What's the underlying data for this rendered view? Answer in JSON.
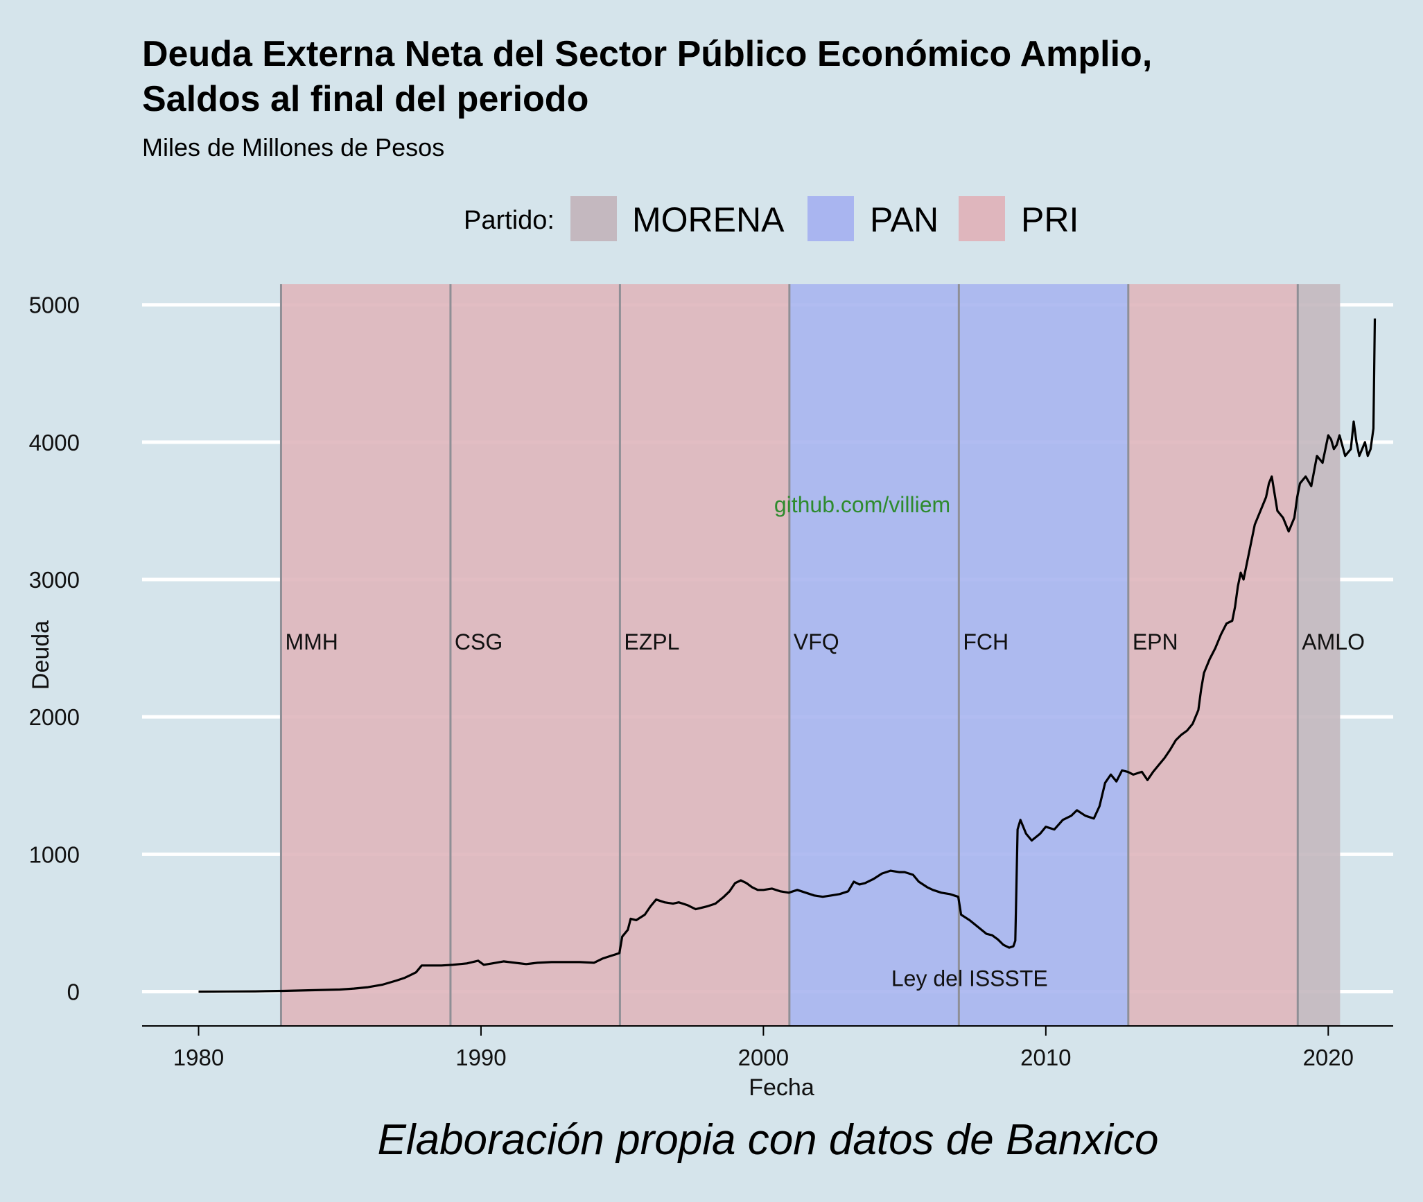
{
  "chart_data": {
    "type": "line",
    "title_lines": [
      "Deuda Externa Neta del Sector Público Económico Amplio,",
      "Saldos al final del periodo"
    ],
    "subtitle": "Miles de Millones de Pesos",
    "xlabel": "Fecha",
    "ylabel": "Deuda",
    "caption": "Elaboración propia con datos de Banxico",
    "watermark": "github.com/villiem",
    "xlim": [
      1978,
      2022.3
    ],
    "ylim": [
      -250,
      5150
    ],
    "x_ticks": [
      1980,
      1990,
      2000,
      2010,
      2020
    ],
    "y_ticks": [
      0,
      1000,
      2000,
      3000,
      4000,
      5000
    ],
    "grid": "horizontal",
    "background_color": "#d5e4eb",
    "line_color": "#000000",
    "legend": {
      "title": "Partido:",
      "position": "top",
      "items": [
        {
          "label": "MORENA",
          "color": "#c4b8bf"
        },
        {
          "label": "PAN",
          "color": "#a9b5f0"
        },
        {
          "label": "PRI",
          "color": "#dfb6bd"
        }
      ]
    },
    "periods": [
      {
        "label": "MMH",
        "party": "PRI",
        "start": 1982.92,
        "end": 1988.92
      },
      {
        "label": "CSG",
        "party": "PRI",
        "start": 1988.92,
        "end": 1994.92
      },
      {
        "label": "EZPL",
        "party": "PRI",
        "start": 1994.92,
        "end": 2000.92
      },
      {
        "label": "VFQ",
        "party": "PAN",
        "start": 2000.92,
        "end": 2006.92
      },
      {
        "label": "FCH",
        "party": "PAN",
        "start": 2006.92,
        "end": 2012.92
      },
      {
        "label": "EPN",
        "party": "PRI",
        "start": 2012.92,
        "end": 2018.92
      },
      {
        "label": "AMLO",
        "party": "MORENA",
        "start": 2018.92,
        "end": 2020.42
      }
    ],
    "period_label_y": 2550,
    "annotations": [
      {
        "text": "Ley del ISSSTE",
        "x": 2007.3,
        "y": 100
      }
    ],
    "series": [
      {
        "points": [
          [
            1980.0,
            0
          ],
          [
            1981.0,
            1
          ],
          [
            1982.0,
            2
          ],
          [
            1983.0,
            5
          ],
          [
            1984.0,
            10
          ],
          [
            1985.0,
            15
          ],
          [
            1985.5,
            22
          ],
          [
            1986.0,
            32
          ],
          [
            1986.5,
            50
          ],
          [
            1987.0,
            80
          ],
          [
            1987.3,
            100
          ],
          [
            1987.5,
            120
          ],
          [
            1987.7,
            140
          ],
          [
            1987.9,
            190
          ],
          [
            1988.2,
            190
          ],
          [
            1988.6,
            190
          ],
          [
            1989.0,
            195
          ],
          [
            1989.5,
            205
          ],
          [
            1989.9,
            225
          ],
          [
            1990.1,
            195
          ],
          [
            1990.4,
            205
          ],
          [
            1990.8,
            220
          ],
          [
            1991.2,
            210
          ],
          [
            1991.6,
            200
          ],
          [
            1992.0,
            210
          ],
          [
            1992.5,
            215
          ],
          [
            1993.0,
            215
          ],
          [
            1993.5,
            215
          ],
          [
            1994.0,
            210
          ],
          [
            1994.3,
            240
          ],
          [
            1994.6,
            260
          ],
          [
            1994.9,
            280
          ],
          [
            1995.0,
            400
          ],
          [
            1995.2,
            450
          ],
          [
            1995.3,
            530
          ],
          [
            1995.5,
            520
          ],
          [
            1995.8,
            560
          ],
          [
            1996.0,
            620
          ],
          [
            1996.2,
            670
          ],
          [
            1996.5,
            650
          ],
          [
            1996.8,
            640
          ],
          [
            1997.0,
            650
          ],
          [
            1997.3,
            630
          ],
          [
            1997.6,
            600
          ],
          [
            1998.0,
            620
          ],
          [
            1998.3,
            640
          ],
          [
            1998.6,
            690
          ],
          [
            1998.8,
            730
          ],
          [
            1999.0,
            790
          ],
          [
            1999.2,
            810
          ],
          [
            1999.4,
            790
          ],
          [
            1999.6,
            760
          ],
          [
            1999.8,
            740
          ],
          [
            2000.0,
            740
          ],
          [
            2000.3,
            750
          ],
          [
            2000.6,
            730
          ],
          [
            2000.9,
            720
          ],
          [
            2001.2,
            740
          ],
          [
            2001.5,
            720
          ],
          [
            2001.8,
            700
          ],
          [
            2002.1,
            690
          ],
          [
            2002.4,
            700
          ],
          [
            2002.7,
            710
          ],
          [
            2003.0,
            730
          ],
          [
            2003.2,
            800
          ],
          [
            2003.4,
            780
          ],
          [
            2003.6,
            790
          ],
          [
            2003.9,
            820
          ],
          [
            2004.2,
            860
          ],
          [
            2004.5,
            880
          ],
          [
            2004.8,
            870
          ],
          [
            2005.0,
            870
          ],
          [
            2005.3,
            850
          ],
          [
            2005.5,
            800
          ],
          [
            2005.8,
            760
          ],
          [
            2006.0,
            740
          ],
          [
            2006.3,
            720
          ],
          [
            2006.6,
            710
          ],
          [
            2006.9,
            690
          ],
          [
            2007.0,
            560
          ],
          [
            2007.3,
            520
          ],
          [
            2007.6,
            470
          ],
          [
            2007.9,
            420
          ],
          [
            2008.1,
            410
          ],
          [
            2008.3,
            380
          ],
          [
            2008.5,
            340
          ],
          [
            2008.7,
            320
          ],
          [
            2008.85,
            330
          ],
          [
            2008.92,
            370
          ],
          [
            2009.0,
            1180
          ],
          [
            2009.1,
            1250
          ],
          [
            2009.3,
            1150
          ],
          [
            2009.5,
            1100
          ],
          [
            2009.8,
            1150
          ],
          [
            2010.0,
            1200
          ],
          [
            2010.3,
            1180
          ],
          [
            2010.6,
            1250
          ],
          [
            2010.9,
            1280
          ],
          [
            2011.1,
            1320
          ],
          [
            2011.4,
            1280
          ],
          [
            2011.7,
            1260
          ],
          [
            2011.9,
            1350
          ],
          [
            2012.1,
            1520
          ],
          [
            2012.3,
            1580
          ],
          [
            2012.5,
            1530
          ],
          [
            2012.7,
            1610
          ],
          [
            2012.9,
            1600
          ],
          [
            2013.1,
            1580
          ],
          [
            2013.4,
            1600
          ],
          [
            2013.6,
            1540
          ],
          [
            2013.8,
            1600
          ],
          [
            2014.0,
            1650
          ],
          [
            2014.2,
            1700
          ],
          [
            2014.4,
            1760
          ],
          [
            2014.6,
            1830
          ],
          [
            2014.8,
            1870
          ],
          [
            2015.0,
            1900
          ],
          [
            2015.2,
            1950
          ],
          [
            2015.4,
            2050
          ],
          [
            2015.5,
            2200
          ],
          [
            2015.6,
            2320
          ],
          [
            2015.8,
            2420
          ],
          [
            2016.0,
            2500
          ],
          [
            2016.2,
            2600
          ],
          [
            2016.4,
            2680
          ],
          [
            2016.6,
            2700
          ],
          [
            2016.7,
            2800
          ],
          [
            2016.8,
            2950
          ],
          [
            2016.9,
            3050
          ],
          [
            2017.0,
            3000
          ],
          [
            2017.2,
            3200
          ],
          [
            2017.4,
            3400
          ],
          [
            2017.6,
            3500
          ],
          [
            2017.8,
            3600
          ],
          [
            2017.9,
            3700
          ],
          [
            2018.0,
            3750
          ],
          [
            2018.2,
            3500
          ],
          [
            2018.4,
            3450
          ],
          [
            2018.6,
            3350
          ],
          [
            2018.8,
            3450
          ],
          [
            2018.9,
            3600
          ],
          [
            2019.0,
            3700
          ],
          [
            2019.2,
            3750
          ],
          [
            2019.4,
            3680
          ],
          [
            2019.6,
            3900
          ],
          [
            2019.8,
            3850
          ],
          [
            2019.9,
            3950
          ],
          [
            2020.0,
            4050
          ],
          [
            2020.1,
            4020
          ],
          [
            2020.2,
            3950
          ],
          [
            2020.3,
            3980
          ],
          [
            2020.4,
            4050
          ],
          [
            2020.6,
            3900
          ],
          [
            2020.8,
            3950
          ],
          [
            2020.9,
            4150
          ],
          [
            2021.0,
            4000
          ],
          [
            2021.1,
            3900
          ],
          [
            2021.2,
            3950
          ],
          [
            2021.3,
            4000
          ],
          [
            2021.4,
            3900
          ],
          [
            2021.5,
            3950
          ],
          [
            2021.6,
            4100
          ],
          [
            2021.65,
            4900
          ]
        ]
      }
    ]
  }
}
